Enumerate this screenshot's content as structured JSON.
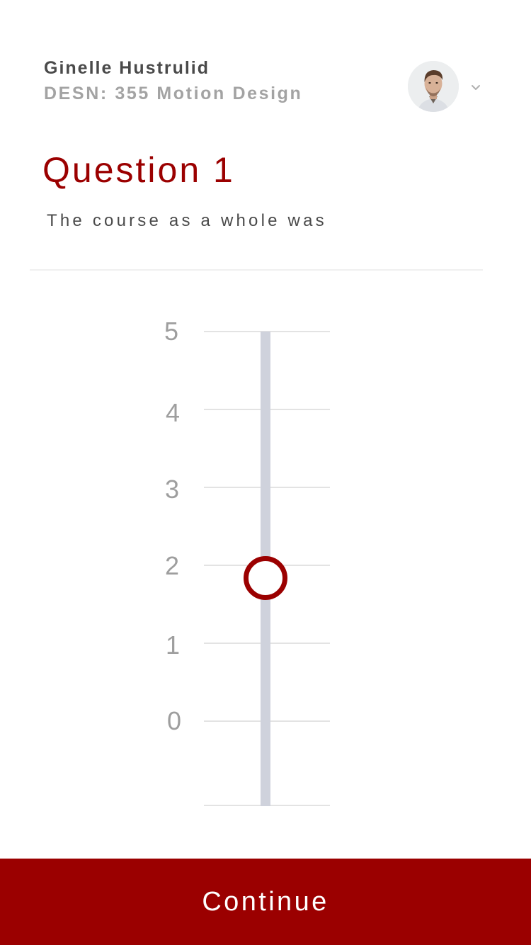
{
  "header": {
    "user_name": "Ginelle Hustrulid",
    "course": "DESN: 355 Motion Design",
    "avatar_icon": "user-avatar-photo",
    "menu_icon": "chevron-down-icon"
  },
  "question": {
    "title": "Question 1",
    "text": "The course as a whole was"
  },
  "scale": {
    "labels": [
      "5",
      "4",
      "3",
      "2",
      "1",
      "0"
    ],
    "min": 0,
    "max": 5,
    "selected_value": 1.85
  },
  "footer": {
    "continue_label": "Continue"
  },
  "colors": {
    "accent": "#9b0000",
    "track": "#cfd2dc",
    "muted_text": "#a3a3a3",
    "primary_text": "#4a4a4a"
  }
}
